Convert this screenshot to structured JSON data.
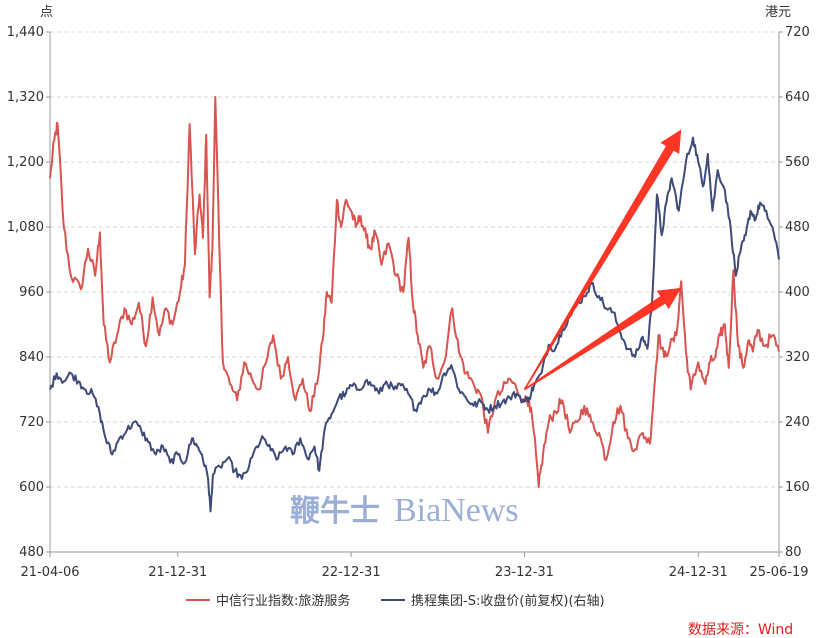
{
  "chart_data": {
    "type": "line",
    "left_unit": "点",
    "right_unit": "港元",
    "x_ticks": [
      "21-04-06",
      "21-12-31",
      "22-12-31",
      "23-12-31",
      "24-12-31",
      "25-06-19"
    ],
    "y_left_ticks": [
      "480",
      "600",
      "720",
      "840",
      "960",
      "1,080",
      "1,200",
      "1,320",
      "1,440"
    ],
    "y_right_ticks": [
      "80",
      "160",
      "240",
      "320",
      "400",
      "480",
      "560",
      "640",
      "720"
    ],
    "ylim_left": [
      480,
      1440
    ],
    "ylim_right": [
      80,
      720
    ],
    "xlim": [
      "2021-04-06",
      "2025-06-19"
    ],
    "grid": true,
    "legend_position": "bottom",
    "series": [
      {
        "name": "中信行业指数:旅游服务",
        "axis": "left",
        "color": "#d9534f",
        "points": [
          [
            "2021-04-06",
            1170
          ],
          [
            "2021-04-15",
            1240
          ],
          [
            "2021-04-22",
            1270
          ],
          [
            "2021-05-05",
            1080
          ],
          [
            "2021-05-20",
            990
          ],
          [
            "2021-06-10",
            965
          ],
          [
            "2021-06-25",
            1040
          ],
          [
            "2021-07-10",
            990
          ],
          [
            "2021-07-20",
            1070
          ],
          [
            "2021-07-28",
            900
          ],
          [
            "2021-08-10",
            830
          ],
          [
            "2021-08-25",
            880
          ],
          [
            "2021-09-10",
            930
          ],
          [
            "2021-09-25",
            900
          ],
          [
            "2021-10-10",
            940
          ],
          [
            "2021-10-25",
            860
          ],
          [
            "2021-11-08",
            950
          ],
          [
            "2021-11-22",
            880
          ],
          [
            "2021-12-06",
            930
          ],
          [
            "2021-12-20",
            900
          ],
          [
            "2022-01-05",
            960
          ],
          [
            "2022-01-15",
            1010
          ],
          [
            "2022-01-25",
            1270
          ],
          [
            "2022-02-05",
            1030
          ],
          [
            "2022-02-15",
            1140
          ],
          [
            "2022-02-22",
            1060
          ],
          [
            "2022-03-01",
            1250
          ],
          [
            "2022-03-08",
            950
          ],
          [
            "2022-03-14",
            1040
          ],
          [
            "2022-03-20",
            1320
          ],
          [
            "2022-03-28",
            1060
          ],
          [
            "2022-04-05",
            830
          ],
          [
            "2022-04-20",
            790
          ],
          [
            "2022-05-05",
            760
          ],
          [
            "2022-05-20",
            830
          ],
          [
            "2022-06-05",
            800
          ],
          [
            "2022-06-20",
            780
          ],
          [
            "2022-07-05",
            830
          ],
          [
            "2022-07-20",
            880
          ],
          [
            "2022-08-05",
            800
          ],
          [
            "2022-08-20",
            840
          ],
          [
            "2022-09-05",
            760
          ],
          [
            "2022-09-20",
            800
          ],
          [
            "2022-10-05",
            740
          ],
          [
            "2022-10-20",
            790
          ],
          [
            "2022-11-01",
            870
          ],
          [
            "2022-11-10",
            960
          ],
          [
            "2022-11-20",
            940
          ],
          [
            "2022-12-01",
            1130
          ],
          [
            "2022-12-10",
            1080
          ],
          [
            "2022-12-20",
            1130
          ],
          [
            "2022-12-31",
            1110
          ],
          [
            "2023-01-10",
            1080
          ],
          [
            "2023-01-20",
            1100
          ],
          [
            "2023-02-01",
            1060
          ],
          [
            "2023-02-10",
            1040
          ],
          [
            "2023-02-20",
            1070
          ],
          [
            "2023-03-05",
            1010
          ],
          [
            "2023-03-20",
            1050
          ],
          [
            "2023-04-05",
            990
          ],
          [
            "2023-04-20",
            960
          ],
          [
            "2023-05-01",
            1060
          ],
          [
            "2023-05-10",
            940
          ],
          [
            "2023-05-20",
            880
          ],
          [
            "2023-06-01",
            820
          ],
          [
            "2023-06-15",
            860
          ],
          [
            "2023-06-30",
            800
          ],
          [
            "2023-07-15",
            830
          ],
          [
            "2023-08-01",
            930
          ],
          [
            "2023-08-15",
            850
          ],
          [
            "2023-08-30",
            810
          ],
          [
            "2023-09-15",
            790
          ],
          [
            "2023-09-30",
            770
          ],
          [
            "2023-10-15",
            700
          ],
          [
            "2023-10-30",
            760
          ],
          [
            "2023-11-15",
            780
          ],
          [
            "2023-11-30",
            800
          ],
          [
            "2023-12-15",
            780
          ],
          [
            "2023-12-31",
            760
          ],
          [
            "2024-01-10",
            760
          ],
          [
            "2024-01-20",
            700
          ],
          [
            "2024-01-30",
            600
          ],
          [
            "2024-02-08",
            660
          ],
          [
            "2024-02-20",
            720
          ],
          [
            "2024-03-05",
            740
          ],
          [
            "2024-03-20",
            760
          ],
          [
            "2024-04-05",
            700
          ],
          [
            "2024-04-20",
            720
          ],
          [
            "2024-05-05",
            750
          ],
          [
            "2024-05-20",
            720
          ],
          [
            "2024-06-05",
            700
          ],
          [
            "2024-06-20",
            650
          ],
          [
            "2024-07-05",
            720
          ],
          [
            "2024-07-20",
            750
          ],
          [
            "2024-08-05",
            690
          ],
          [
            "2024-08-20",
            670
          ],
          [
            "2024-09-05",
            700
          ],
          [
            "2024-09-20",
            680
          ],
          [
            "2024-09-30",
            790
          ],
          [
            "2024-10-08",
            880
          ],
          [
            "2024-10-20",
            840
          ],
          [
            "2024-11-01",
            860
          ],
          [
            "2024-11-15",
            880
          ],
          [
            "2024-11-25",
            980
          ],
          [
            "2024-12-05",
            850
          ],
          [
            "2024-12-15",
            780
          ],
          [
            "2024-12-31",
            830
          ],
          [
            "2025-01-15",
            790
          ],
          [
            "2025-01-25",
            830
          ],
          [
            "2025-02-05",
            840
          ],
          [
            "2025-02-15",
            880
          ],
          [
            "2025-02-25",
            900
          ],
          [
            "2025-03-05",
            820
          ],
          [
            "2025-03-15",
            1000
          ],
          [
            "2025-03-25",
            860
          ],
          [
            "2025-04-05",
            820
          ],
          [
            "2025-04-15",
            870
          ],
          [
            "2025-04-25",
            850
          ],
          [
            "2025-05-05",
            890
          ],
          [
            "2025-05-20",
            860
          ],
          [
            "2025-06-05",
            880
          ],
          [
            "2025-06-19",
            850
          ]
        ]
      },
      {
        "name": "携程集团-S:收盘价(前复权)(右轴)",
        "axis": "right",
        "color": "#3d4a7a",
        "points": [
          [
            "2021-04-06",
            280
          ],
          [
            "2021-04-20",
            300
          ],
          [
            "2021-05-05",
            290
          ],
          [
            "2021-05-20",
            300
          ],
          [
            "2021-06-05",
            290
          ],
          [
            "2021-06-20",
            280
          ],
          [
            "2021-07-05",
            275
          ],
          [
            "2021-07-20",
            250
          ],
          [
            "2021-08-01",
            220
          ],
          [
            "2021-08-15",
            200
          ],
          [
            "2021-08-30",
            220
          ],
          [
            "2021-09-15",
            230
          ],
          [
            "2021-09-30",
            240
          ],
          [
            "2021-10-15",
            230
          ],
          [
            "2021-10-30",
            215
          ],
          [
            "2021-11-15",
            200
          ],
          [
            "2021-11-30",
            210
          ],
          [
            "2021-12-15",
            190
          ],
          [
            "2021-12-31",
            200
          ],
          [
            "2022-01-15",
            190
          ],
          [
            "2022-01-30",
            220
          ],
          [
            "2022-02-10",
            210
          ],
          [
            "2022-02-20",
            200
          ],
          [
            "2022-03-05",
            170
          ],
          [
            "2022-03-10",
            130
          ],
          [
            "2022-03-15",
            175
          ],
          [
            "2022-03-30",
            185
          ],
          [
            "2022-04-15",
            195
          ],
          [
            "2022-04-30",
            180
          ],
          [
            "2022-05-15",
            170
          ],
          [
            "2022-05-30",
            185
          ],
          [
            "2022-06-15",
            210
          ],
          [
            "2022-06-30",
            220
          ],
          [
            "2022-07-15",
            205
          ],
          [
            "2022-07-30",
            195
          ],
          [
            "2022-08-15",
            210
          ],
          [
            "2022-08-30",
            200
          ],
          [
            "2022-09-15",
            220
          ],
          [
            "2022-09-30",
            195
          ],
          [
            "2022-10-15",
            210
          ],
          [
            "2022-10-25",
            180
          ],
          [
            "2022-11-05",
            230
          ],
          [
            "2022-11-20",
            250
          ],
          [
            "2022-12-05",
            270
          ],
          [
            "2022-12-20",
            275
          ],
          [
            "2022-12-31",
            285
          ],
          [
            "2023-01-15",
            280
          ],
          [
            "2023-01-30",
            290
          ],
          [
            "2023-02-15",
            285
          ],
          [
            "2023-02-28",
            275
          ],
          [
            "2023-03-15",
            290
          ],
          [
            "2023-03-31",
            280
          ],
          [
            "2023-04-15",
            285
          ],
          [
            "2023-04-30",
            275
          ],
          [
            "2023-05-15",
            255
          ],
          [
            "2023-05-30",
            270
          ],
          [
            "2023-06-15",
            280
          ],
          [
            "2023-06-30",
            275
          ],
          [
            "2023-07-15",
            300
          ],
          [
            "2023-07-30",
            310
          ],
          [
            "2023-08-15",
            280
          ],
          [
            "2023-08-30",
            270
          ],
          [
            "2023-09-15",
            260
          ],
          [
            "2023-09-30",
            265
          ],
          [
            "2023-10-15",
            255
          ],
          [
            "2023-10-30",
            260
          ],
          [
            "2023-11-15",
            265
          ],
          [
            "2023-11-30",
            270
          ],
          [
            "2023-12-15",
            275
          ],
          [
            "2023-12-31",
            265
          ],
          [
            "2024-01-10",
            270
          ],
          [
            "2024-01-20",
            285
          ],
          [
            "2024-02-05",
            300
          ],
          [
            "2024-02-20",
            335
          ],
          [
            "2024-03-05",
            330
          ],
          [
            "2024-03-20",
            355
          ],
          [
            "2024-04-05",
            370
          ],
          [
            "2024-04-20",
            385
          ],
          [
            "2024-05-05",
            395
          ],
          [
            "2024-05-20",
            410
          ],
          [
            "2024-06-05",
            395
          ],
          [
            "2024-06-20",
            380
          ],
          [
            "2024-07-05",
            375
          ],
          [
            "2024-07-20",
            350
          ],
          [
            "2024-08-05",
            330
          ],
          [
            "2024-08-20",
            320
          ],
          [
            "2024-09-05",
            345
          ],
          [
            "2024-09-15",
            330
          ],
          [
            "2024-09-25",
            390
          ],
          [
            "2024-10-05",
            520
          ],
          [
            "2024-10-15",
            470
          ],
          [
            "2024-10-25",
            510
          ],
          [
            "2024-11-05",
            540
          ],
          [
            "2024-11-20",
            500
          ],
          [
            "2024-12-05",
            560
          ],
          [
            "2024-12-20",
            590
          ],
          [
            "2024-12-31",
            560
          ],
          [
            "2025-01-10",
            530
          ],
          [
            "2025-01-20",
            570
          ],
          [
            "2025-01-30",
            500
          ],
          [
            "2025-02-10",
            550
          ],
          [
            "2025-02-25",
            525
          ],
          [
            "2025-03-10",
            475
          ],
          [
            "2025-03-20",
            420
          ],
          [
            "2025-03-30",
            450
          ],
          [
            "2025-04-10",
            470
          ],
          [
            "2025-04-20",
            500
          ],
          [
            "2025-05-01",
            490
          ],
          [
            "2025-05-10",
            510
          ],
          [
            "2025-05-20",
            500
          ],
          [
            "2025-06-05",
            480
          ],
          [
            "2025-06-19",
            440
          ]
        ]
      }
    ],
    "arrows": [
      {
        "from": [
          "2023-12-31",
          280
        ],
        "to": [
          "2024-11-25",
          600
        ],
        "axis": "right",
        "color": "#ff2a1a"
      },
      {
        "from": [
          "2023-12-31",
          280
        ],
        "to": [
          "2024-11-25",
          405
        ],
        "axis": "right",
        "color": "#ff2a1a"
      }
    ]
  },
  "watermark": {
    "cn": "鞭牛士",
    "en": "BiaNews"
  },
  "source": "数据来源：Wind"
}
